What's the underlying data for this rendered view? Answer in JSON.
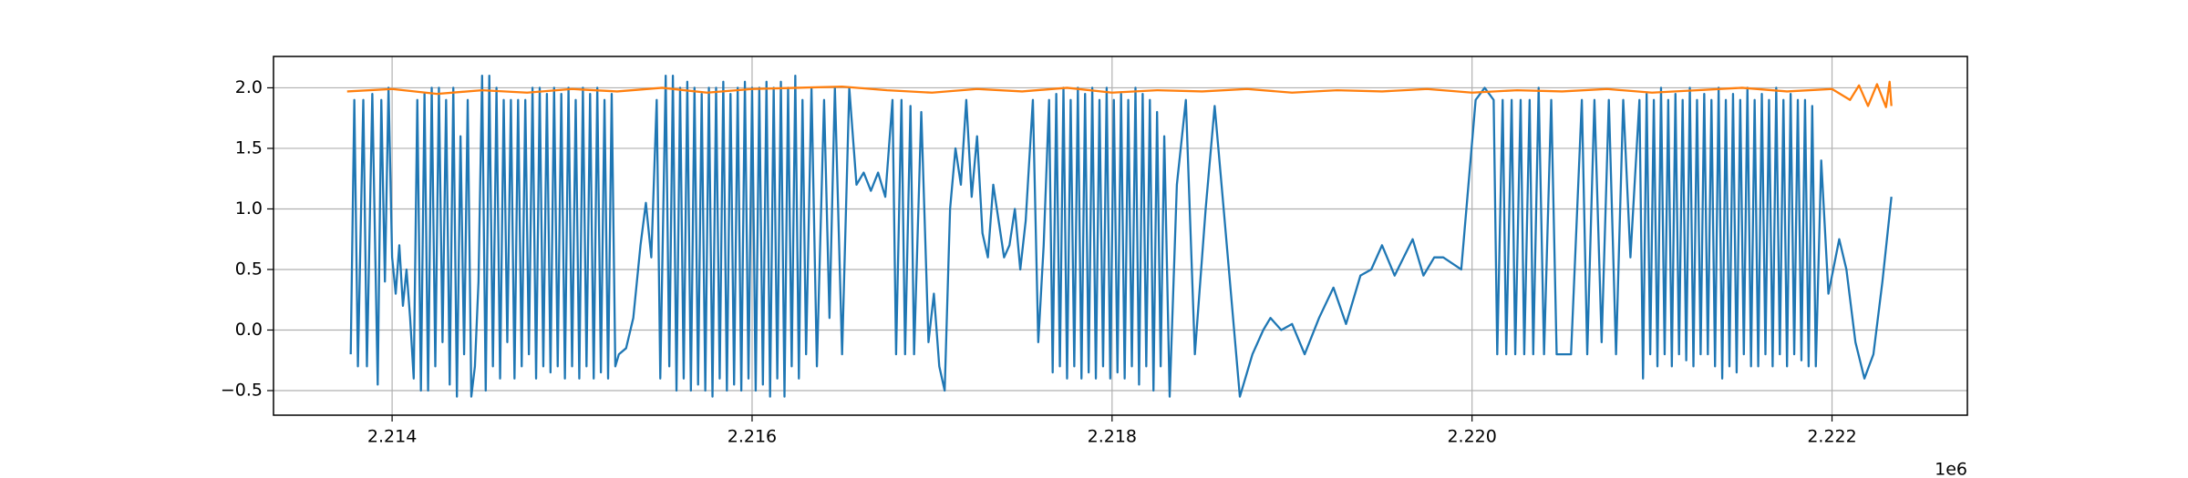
{
  "chart_data": {
    "type": "line",
    "x_offset_label": "1e6",
    "grid": true,
    "xlim": [
      2213341,
      2222752
    ],
    "ylim": [
      -0.703,
      2.259
    ],
    "xticks": [
      {
        "value": 2214000,
        "label": "2.214"
      },
      {
        "value": 2216000,
        "label": "2.216"
      },
      {
        "value": 2218000,
        "label": "2.218"
      },
      {
        "value": 2220000,
        "label": "2.220"
      },
      {
        "value": 2222000,
        "label": "2.222"
      }
    ],
    "yticks": [
      {
        "value": -0.5,
        "label": "−0.5"
      },
      {
        "value": 0,
        "label": "0.0"
      },
      0.5,
      {
        "value": 1,
        "label": "1.0"
      },
      1.5,
      {
        "value": 2,
        "label": "2.0"
      }
    ],
    "series": [
      {
        "color": "#1f77b4",
        "x": [
          2213770,
          2213790,
          2213810,
          2213840,
          2213860,
          2213890,
          2213920,
          2213940,
          2213960,
          2213980,
          2214000,
          2214020,
          2214040,
          2214060,
          2214080,
          2214100,
          2214120,
          2214140,
          2214160,
          2214180,
          2214200,
          2214220,
          2214240,
          2214260,
          2214280,
          2214300,
          2214320,
          2214340,
          2214360,
          2214380,
          2214400,
          2214420,
          2214440,
          2214460,
          2214480,
          2214500,
          2214520,
          2214540,
          2214560,
          2214580,
          2214600,
          2214620,
          2214640,
          2214660,
          2214680,
          2214700,
          2214720,
          2214740,
          2214760,
          2214780,
          2214800,
          2214820,
          2214840,
          2214860,
          2214880,
          2214900,
          2214920,
          2214940,
          2214960,
          2214980,
          2215000,
          2215020,
          2215040,
          2215060,
          2215080,
          2215100,
          2215120,
          2215140,
          2215160,
          2215180,
          2215200,
          2215220,
          2215240,
          2215260,
          2215300,
          2215340,
          2215380,
          2215410,
          2215440,
          2215470,
          2215490,
          2215520,
          2215540,
          2215560,
          2215580,
          2215600,
          2215620,
          2215640,
          2215660,
          2215680,
          2215700,
          2215720,
          2215740,
          2215760,
          2215780,
          2215800,
          2215820,
          2215840,
          2215860,
          2215880,
          2215900,
          2215920,
          2215940,
          2215960,
          2215980,
          2216000,
          2216020,
          2216040,
          2216060,
          2216080,
          2216100,
          2216120,
          2216140,
          2216160,
          2216180,
          2216200,
          2216220,
          2216240,
          2216260,
          2216280,
          2216300,
          2216330,
          2216360,
          2216400,
          2216430,
          2216460,
          2216500,
          2216540,
          2216580,
          2216620,
          2216660,
          2216700,
          2216740,
          2216780,
          2216800,
          2216830,
          2216850,
          2216880,
          2216900,
          2216940,
          2216980,
          2217010,
          2217040,
          2217070,
          2217100,
          2217130,
          2217160,
          2217190,
          2217220,
          2217250,
          2217280,
          2217310,
          2217340,
          2217370,
          2217400,
          2217430,
          2217460,
          2217490,
          2217520,
          2217560,
          2217590,
          2217620,
          2217650,
          2217670,
          2217690,
          2217710,
          2217730,
          2217750,
          2217770,
          2217790,
          2217810,
          2217830,
          2217850,
          2217870,
          2217890,
          2217910,
          2217930,
          2217950,
          2217970,
          2217990,
          2218010,
          2218030,
          2218050,
          2218070,
          2218090,
          2218110,
          2218130,
          2218150,
          2218170,
          2218190,
          2218210,
          2218230,
          2218250,
          2218270,
          2218290,
          2218320,
          2218360,
          2218410,
          2218460,
          2218520,
          2218570,
          2218620,
          2218710,
          2218780,
          2218840,
          2218880,
          2218940,
          2219000,
          2219070,
          2219150,
          2219230,
          2219300,
          2219380,
          2219440,
          2219500,
          2219570,
          2219670,
          2219730,
          2219790,
          2219840,
          2219940,
          2219980,
          2220020,
          2220070,
          2220120,
          2220140,
          2220170,
          2220190,
          2220220,
          2220240,
          2220270,
          2220290,
          2220320,
          2220340,
          2220370,
          2220400,
          2220440,
          2220470,
          2220550,
          2220610,
          2220640,
          2220680,
          2220720,
          2220760,
          2220800,
          2220840,
          2220880,
          2220930,
          2220950,
          2220970,
          2220990,
          2221010,
          2221030,
          2221050,
          2221070,
          2221090,
          2221110,
          2221130,
          2221150,
          2221170,
          2221190,
          2221210,
          2221230,
          2221250,
          2221270,
          2221290,
          2221310,
          2221330,
          2221350,
          2221370,
          2221390,
          2221410,
          2221430,
          2221450,
          2221470,
          2221490,
          2221510,
          2221530,
          2221550,
          2221570,
          2221590,
          2221610,
          2221630,
          2221650,
          2221670,
          2221690,
          2221710,
          2221730,
          2221750,
          2221770,
          2221790,
          2221810,
          2221830,
          2221850,
          2221870,
          2221890,
          2221910,
          2221940,
          2221980,
          2222040,
          2222080,
          2222130,
          2222180,
          2222230,
          2222280,
          2222330
        ],
        "values": [
          -0.2,
          1.9,
          -0.3,
          1.9,
          -0.3,
          1.95,
          -0.45,
          1.9,
          0.4,
          2.0,
          0.6,
          0.3,
          0.7,
          0.2,
          0.5,
          0.1,
          -0.4,
          1.9,
          -0.5,
          1.95,
          -0.5,
          2.0,
          -0.3,
          2.0,
          -0.1,
          1.9,
          -0.45,
          2.0,
          -0.55,
          1.6,
          -0.2,
          1.9,
          -0.55,
          -0.3,
          0.4,
          2.1,
          -0.5,
          2.1,
          -0.3,
          2.0,
          -0.4,
          1.9,
          -0.1,
          1.9,
          -0.4,
          1.9,
          -0.3,
          1.9,
          -0.2,
          2.0,
          -0.4,
          2.0,
          -0.3,
          1.95,
          -0.35,
          2.0,
          -0.3,
          1.95,
          -0.4,
          2.0,
          -0.3,
          1.9,
          -0.4,
          2.0,
          -0.3,
          1.95,
          -0.4,
          2.0,
          -0.35,
          1.9,
          -0.4,
          1.95,
          -0.3,
          -0.2,
          -0.15,
          0.1,
          0.7,
          1.05,
          0.6,
          1.9,
          -0.4,
          2.1,
          -0.3,
          2.1,
          -0.5,
          2.0,
          -0.4,
          2.05,
          -0.5,
          2.0,
          -0.45,
          1.95,
          -0.5,
          2.0,
          -0.55,
          2.0,
          -0.4,
          2.05,
          -0.5,
          1.95,
          -0.45,
          2.0,
          -0.5,
          2.05,
          -0.4,
          2.0,
          -0.5,
          2.0,
          -0.45,
          2.05,
          -0.55,
          2.0,
          -0.4,
          2.05,
          -0.55,
          2.0,
          -0.3,
          2.1,
          -0.4,
          1.9,
          -0.2,
          2.0,
          -0.3,
          1.9,
          0.1,
          2.0,
          -0.2,
          2.0,
          1.2,
          1.3,
          1.15,
          1.3,
          1.1,
          1.9,
          -0.2,
          1.9,
          -0.2,
          1.85,
          -0.2,
          1.8,
          -0.1,
          0.3,
          -0.3,
          -0.5,
          1.0,
          1.5,
          1.2,
          1.9,
          1.1,
          1.6,
          0.8,
          0.6,
          1.2,
          0.9,
          0.6,
          0.7,
          1.0,
          0.5,
          0.9,
          1.9,
          -0.1,
          0.7,
          1.9,
          -0.35,
          1.95,
          -0.3,
          2.0,
          -0.4,
          1.9,
          -0.3,
          2.0,
          -0.4,
          1.95,
          -0.35,
          2.0,
          -0.4,
          1.9,
          -0.3,
          2.0,
          -0.4,
          1.9,
          -0.35,
          1.95,
          -0.4,
          1.9,
          -0.3,
          2.0,
          -0.45,
          1.95,
          -0.3,
          1.9,
          -0.5,
          1.8,
          -0.3,
          1.6,
          -0.55,
          1.2,
          1.9,
          -0.2,
          1.0,
          1.85,
          1.0,
          -0.55,
          -0.2,
          0.0,
          0.1,
          0.0,
          0.05,
          -0.2,
          0.1,
          0.35,
          0.05,
          0.45,
          0.5,
          0.7,
          0.45,
          0.75,
          0.45,
          0.6,
          0.6,
          0.5,
          1.2,
          1.9,
          2.0,
          1.9,
          -0.2,
          1.9,
          -0.2,
          1.9,
          -0.2,
          1.9,
          -0.2,
          1.9,
          -0.2,
          2.0,
          -0.2,
          1.9,
          -0.2,
          -0.2,
          1.9,
          -0.2,
          1.9,
          -0.1,
          1.9,
          -0.2,
          1.9,
          0.6,
          1.9,
          -0.4,
          1.95,
          -0.2,
          1.9,
          -0.3,
          2.0,
          -0.2,
          1.9,
          -0.3,
          1.95,
          -0.2,
          1.9,
          -0.25,
          2.0,
          -0.3,
          1.9,
          -0.2,
          1.95,
          -0.2,
          1.9,
          -0.3,
          2.0,
          -0.4,
          1.9,
          -0.3,
          1.95,
          -0.35,
          1.9,
          -0.2,
          2.0,
          -0.3,
          1.9,
          -0.3,
          1.95,
          -0.2,
          1.9,
          -0.3,
          2.0,
          -0.2,
          1.9,
          -0.3,
          1.95,
          -0.2,
          1.9,
          -0.25,
          1.9,
          -0.3,
          1.85,
          -0.3,
          1.4,
          0.3,
          0.75,
          0.5,
          -0.1,
          -0.4,
          -0.2,
          0.4,
          1.1
        ]
      },
      {
        "color": "#ff7f0e",
        "x": [
          2213750,
          2214000,
          2214250,
          2214500,
          2214750,
          2215000,
          2215250,
          2215500,
          2215750,
          2216000,
          2216250,
          2216500,
          2216750,
          2217000,
          2217250,
          2217500,
          2217750,
          2218000,
          2218250,
          2218500,
          2218750,
          2219000,
          2219250,
          2219500,
          2219750,
          2220000,
          2220250,
          2220500,
          2220750,
          2221000,
          2221250,
          2221500,
          2221750,
          2222000,
          2222100,
          2222150,
          2222200,
          2222250,
          2222300,
          2222320,
          2222330
        ],
        "values": [
          1.97,
          1.99,
          1.95,
          1.98,
          1.96,
          1.99,
          1.97,
          2.0,
          1.96,
          1.99,
          2.0,
          2.01,
          1.98,
          1.96,
          1.99,
          1.97,
          2.0,
          1.96,
          1.98,
          1.97,
          1.99,
          1.96,
          1.98,
          1.97,
          1.99,
          1.96,
          1.98,
          1.97,
          1.99,
          1.96,
          1.98,
          2.0,
          1.97,
          1.99,
          1.9,
          2.02,
          1.85,
          2.03,
          1.84,
          2.05,
          1.85
        ]
      }
    ]
  }
}
